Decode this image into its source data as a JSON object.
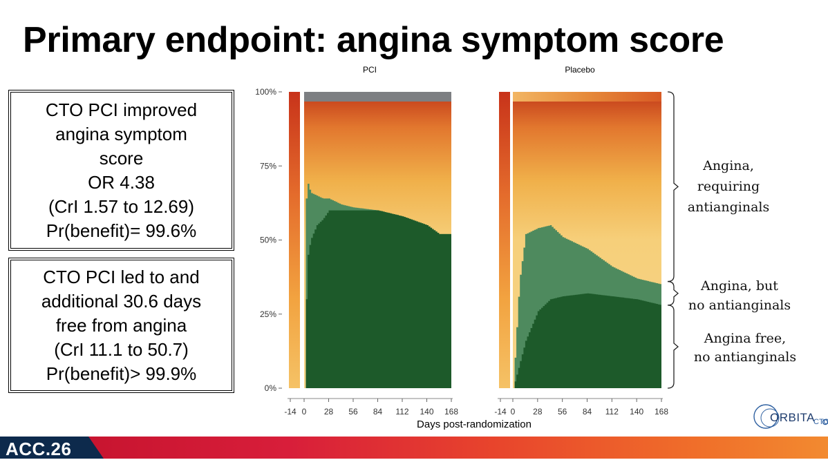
{
  "slide": {
    "title": "Primary endpoint: angina symptom score",
    "box1": [
      "CTO PCI improved",
      "angina symptom",
      "score",
      "OR 4.38",
      "(CrI 1.57 to 12.69)",
      "Pr(benefit)= 99.6%"
    ],
    "box2": [
      "CTO PCI led to and",
      "additional 30.6 days",
      "free from angina",
      "(CrI 11.1 to 50.7)",
      "Pr(benefit)> 99.9%"
    ],
    "footer": "ACC.26",
    "logo": "ORBITA",
    "logo_sub": "CTO"
  },
  "chart_data": {
    "type": "area",
    "panels": [
      "PCI",
      "Placebo"
    ],
    "xlabel": "Days post-randomization",
    "x_ticks": [
      -14,
      0,
      28,
      56,
      84,
      112,
      140,
      168
    ],
    "x_tick_labels": [
      "-14",
      "0",
      "28",
      "56",
      "84",
      "112",
      "140",
      "168"
    ],
    "y_ticks": [
      0,
      25,
      50,
      75,
      100
    ],
    "y_tick_labels": [
      "0%",
      "25%",
      "50%",
      "75%",
      "100%"
    ],
    "ylim": [
      0,
      100
    ],
    "annotations": [
      {
        "lines": [
          "Angina,",
          "requiring",
          "antianginals"
        ],
        "y_range": [
          33,
          100
        ]
      },
      {
        "lines": [
          "Angina, but",
          "no antianginals"
        ],
        "y_range": [
          28,
          36
        ]
      },
      {
        "lines": [
          "Angina free,",
          "no antianginals"
        ],
        "y_range": [
          0,
          28
        ]
      }
    ],
    "series": [
      {
        "panel": "PCI",
        "name": "Angina free, no antianginals (%)",
        "x": [
          -14,
          0,
          2,
          4,
          7,
          14,
          21,
          28,
          42,
          56,
          84,
          112,
          140,
          154,
          168
        ],
        "values": [
          0,
          0,
          30,
          45,
          50,
          55,
          57,
          60,
          60,
          60,
          60,
          58,
          55,
          52,
          52
        ]
      },
      {
        "panel": "PCI",
        "name": "Angina, but no antianginals (%)",
        "x": [
          -14,
          0,
          2,
          4,
          7,
          14,
          21,
          28,
          42,
          56,
          84,
          112,
          140,
          154,
          168
        ],
        "values": [
          0,
          0,
          34,
          24,
          16,
          10,
          7,
          4,
          2,
          1,
          0,
          0,
          0,
          0,
          0
        ]
      },
      {
        "panel": "Placebo",
        "name": "Angina free, no antianginals (%)",
        "x": [
          -14,
          0,
          7,
          14,
          28,
          42,
          56,
          84,
          112,
          140,
          154,
          168
        ],
        "values": [
          0,
          0,
          8,
          16,
          26,
          30,
          31,
          32,
          31,
          30,
          29,
          28
        ]
      },
      {
        "panel": "Placebo",
        "name": "Angina, but no antianginals (%)",
        "x": [
          -14,
          0,
          7,
          14,
          28,
          42,
          56,
          84,
          112,
          140,
          154,
          168
        ],
        "values": [
          0,
          0,
          28,
          36,
          28,
          25,
          20,
          15,
          10,
          7,
          7,
          7
        ]
      }
    ]
  }
}
